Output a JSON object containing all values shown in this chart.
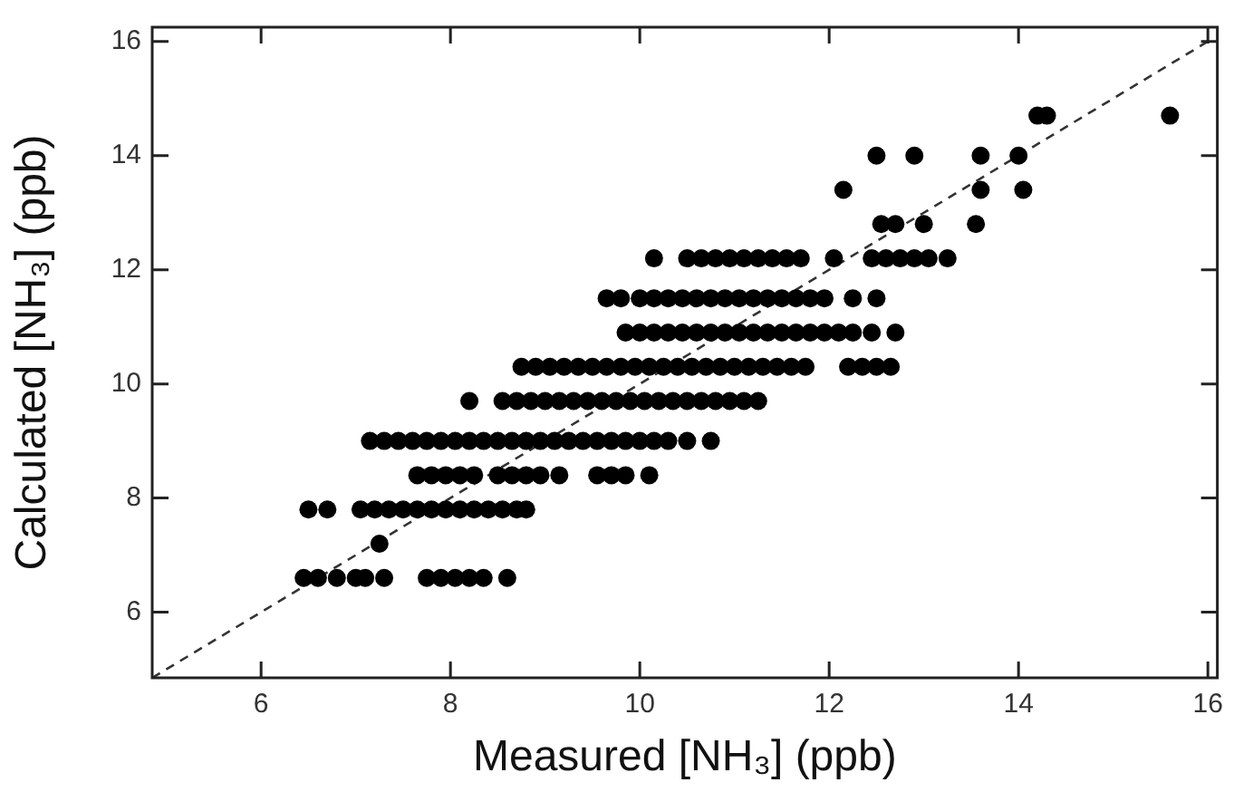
{
  "chart_data": {
    "type": "scatter",
    "xlabel": "Measured [NH₃] (ppb)",
    "ylabel": "Calculated [NH₃] (ppb)",
    "xlim": [
      4.85,
      16.1
    ],
    "ylim": [
      4.85,
      16.25
    ],
    "xticks": [
      6,
      8,
      10,
      12,
      14,
      16
    ],
    "yticks": [
      6,
      8,
      10,
      12,
      14,
      16
    ],
    "marker": "circle",
    "legend": false,
    "series": [
      {
        "color": "#000000",
        "x": [
          6.45,
          6.6,
          6.8,
          7,
          7.1,
          7.3,
          7.75,
          7.9,
          8.05,
          8.2,
          8.35,
          8.6
        ],
        "values": [
          6.6,
          6.6,
          6.6,
          6.6,
          6.6,
          6.6,
          6.6,
          6.6,
          6.6,
          6.6,
          6.6,
          6.6
        ]
      },
      {
        "color": "#000000",
        "x": [
          7.25
        ],
        "values": [
          7.2
        ]
      },
      {
        "color": "#000000",
        "x": [
          6.5,
          6.7,
          7.05,
          7.2,
          7.35,
          7.5,
          7.65,
          7.8,
          7.95,
          8.1,
          8.25,
          8.4,
          8.55,
          8.7,
          8.8
        ],
        "values": [
          7.8,
          7.8,
          7.8,
          7.8,
          7.8,
          7.8,
          7.8,
          7.8,
          7.8,
          7.8,
          7.8,
          7.8,
          7.8,
          7.8,
          7.8
        ]
      },
      {
        "color": "#000000",
        "x": [
          7.65,
          7.8,
          7.95,
          8.1,
          8.25,
          8.5,
          8.65,
          8.8,
          8.95,
          9.15,
          9.55,
          9.7,
          9.85,
          10.1
        ],
        "values": [
          8.4,
          8.4,
          8.4,
          8.4,
          8.4,
          8.4,
          8.4,
          8.4,
          8.4,
          8.4,
          8.4,
          8.4,
          8.4,
          8.4
        ]
      },
      {
        "color": "#000000",
        "x": [
          7.15,
          7.3,
          7.45,
          7.6,
          7.75,
          7.9,
          8.05,
          8.2,
          8.35,
          8.5,
          8.65,
          8.8,
          8.95,
          9.1,
          9.25,
          9.4,
          9.55,
          9.7,
          9.85,
          10,
          10.15,
          10.3,
          10.5,
          10.75
        ],
        "values": [
          9,
          9,
          9,
          9,
          9,
          9,
          9,
          9,
          9,
          9,
          9,
          9,
          9,
          9,
          9,
          9,
          9,
          9,
          9,
          9,
          9,
          9,
          9,
          9
        ]
      },
      {
        "color": "#000000",
        "x": [
          8.2,
          8.55,
          8.7,
          8.85,
          9,
          9.15,
          9.3,
          9.45,
          9.6,
          9.75,
          9.9,
          10.05,
          10.2,
          10.35,
          10.5,
          10.65,
          10.8,
          10.95,
          11.1,
          11.25
        ],
        "values": [
          9.7,
          9.7,
          9.7,
          9.7,
          9.7,
          9.7,
          9.7,
          9.7,
          9.7,
          9.7,
          9.7,
          9.7,
          9.7,
          9.7,
          9.7,
          9.7,
          9.7,
          9.7,
          9.7,
          9.7
        ]
      },
      {
        "color": "#000000",
        "x": [
          8.75,
          8.9,
          9.05,
          9.2,
          9.35,
          9.5,
          9.65,
          9.8,
          9.95,
          10.1,
          10.25,
          10.4,
          10.55,
          10.7,
          10.85,
          11,
          11.15,
          11.3,
          11.45,
          11.6,
          11.75,
          12.2,
          12.35,
          12.5,
          12.65
        ],
        "values": [
          10.3,
          10.3,
          10.3,
          10.3,
          10.3,
          10.3,
          10.3,
          10.3,
          10.3,
          10.3,
          10.3,
          10.3,
          10.3,
          10.3,
          10.3,
          10.3,
          10.3,
          10.3,
          10.3,
          10.3,
          10.3,
          10.3,
          10.3,
          10.3,
          10.3
        ]
      },
      {
        "color": "#000000",
        "x": [
          9.85,
          10,
          10.15,
          10.3,
          10.45,
          10.6,
          10.75,
          10.9,
          11.05,
          11.2,
          11.35,
          11.5,
          11.65,
          11.8,
          11.95,
          12.1,
          12.25,
          12.45,
          12.7
        ],
        "values": [
          10.9,
          10.9,
          10.9,
          10.9,
          10.9,
          10.9,
          10.9,
          10.9,
          10.9,
          10.9,
          10.9,
          10.9,
          10.9,
          10.9,
          10.9,
          10.9,
          10.9,
          10.9,
          10.9
        ]
      },
      {
        "color": "#000000",
        "x": [
          9.65,
          9.8,
          10,
          10.15,
          10.3,
          10.45,
          10.6,
          10.75,
          10.9,
          11.05,
          11.2,
          11.35,
          11.5,
          11.65,
          11.8,
          11.95,
          12.25,
          12.5
        ],
        "values": [
          11.5,
          11.5,
          11.5,
          11.5,
          11.5,
          11.5,
          11.5,
          11.5,
          11.5,
          11.5,
          11.5,
          11.5,
          11.5,
          11.5,
          11.5,
          11.5,
          11.5,
          11.5
        ]
      },
      {
        "color": "#000000",
        "x": [
          10.15,
          10.5,
          10.65,
          10.8,
          10.95,
          11.1,
          11.25,
          11.4,
          11.55,
          11.7,
          12.05,
          12.45,
          12.6,
          12.75,
          12.9,
          13.05,
          13.25
        ],
        "values": [
          12.2,
          12.2,
          12.2,
          12.2,
          12.2,
          12.2,
          12.2,
          12.2,
          12.2,
          12.2,
          12.2,
          12.2,
          12.2,
          12.2,
          12.2,
          12.2,
          12.2
        ]
      },
      {
        "color": "#000000",
        "x": [
          12.55,
          12.7,
          13,
          13.55
        ],
        "values": [
          12.8,
          12.8,
          12.8,
          12.8
        ]
      },
      {
        "color": "#000000",
        "x": [
          12.15,
          13.6,
          14.05
        ],
        "values": [
          13.4,
          13.4,
          13.4
        ]
      },
      {
        "color": "#000000",
        "x": [
          12.5,
          12.9,
          13.6,
          14
        ],
        "values": [
          14,
          14,
          14,
          14
        ]
      },
      {
        "color": "#000000",
        "x": [
          14.2,
          14.3,
          15.6
        ],
        "values": [
          14.7,
          14.7,
          14.7
        ]
      },
      {
        "type": "line",
        "color": "#333333",
        "line_style": "dashed",
        "marker": "none",
        "x": [
          4.85,
          16
        ],
        "values": [
          4.85,
          16
        ]
      }
    ]
  }
}
